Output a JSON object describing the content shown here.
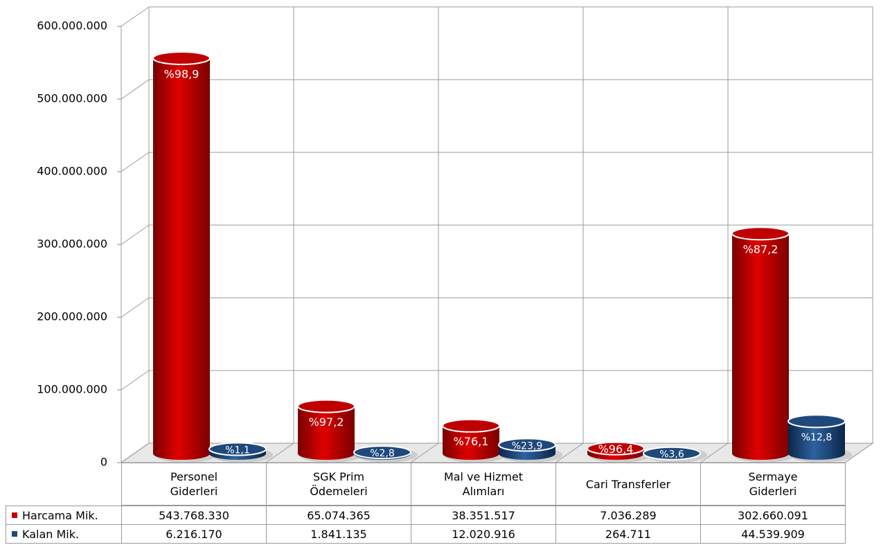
{
  "chart_data": {
    "type": "bar3d",
    "categories": [
      "Personel\nGiderleri",
      "SGK Prim\nÖdemeleri",
      "Mal ve Hizmet\nAlımları",
      "Cari Transferler",
      "Sermaye\nGiderleri"
    ],
    "series": [
      {
        "name": "Harcama Mik.",
        "color": "#c00000",
        "values": [
          543768330,
          65074365,
          38351517,
          7036289,
          302660091
        ],
        "value_labels": [
          "543.768.330",
          "65.074.365",
          "38.351.517",
          "7.036.289",
          "302.660.091"
        ],
        "percent_labels": [
          "%98,9",
          "%97,2",
          "%76,1",
          "%96,4",
          "%87,2"
        ]
      },
      {
        "name": "Kalan Mik.",
        "color": "#1f497d",
        "values": [
          6216170,
          1841135,
          12020916,
          264711,
          44539909
        ],
        "value_labels": [
          "6.216.170",
          "1.841.135",
          "12.020.916",
          "264.711",
          "44.539.909"
        ],
        "percent_labels": [
          "%1,1",
          "%2,8",
          "%23,9",
          "%3,6",
          "%12,8"
        ]
      }
    ],
    "ylim": [
      0,
      600000000
    ],
    "yticks": [
      0,
      {
        "value": 100000000,
        "label": "100.000.000"
      },
      {
        "value": 200000000,
        "label": "200.000.000"
      },
      {
        "value": 300000000,
        "label": "300.000.000"
      },
      {
        "value": 400000000,
        "label": "400.000.000"
      },
      {
        "value": 500000000,
        "label": "500.000.000"
      },
      {
        "value": 600000000,
        "label": "600.000.000"
      }
    ],
    "grid": true
  }
}
